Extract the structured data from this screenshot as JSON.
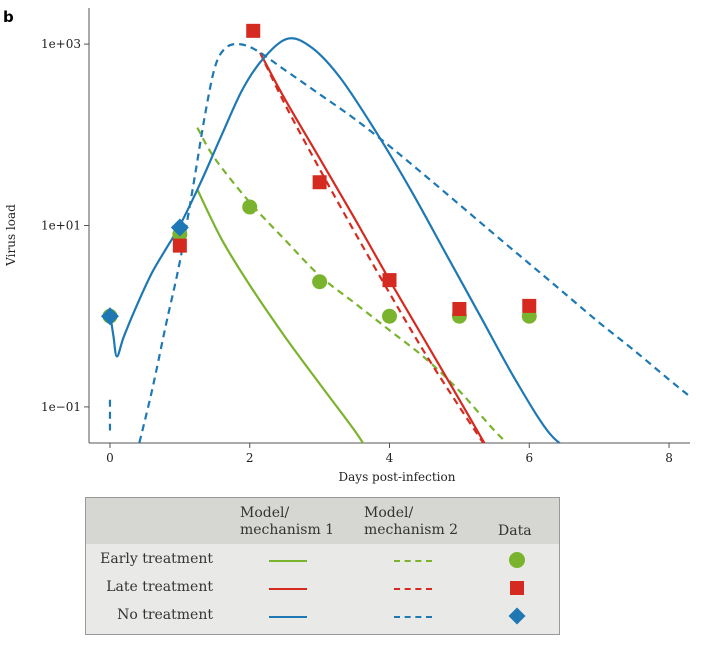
{
  "panel_label": "b",
  "chart_data": {
    "type": "line",
    "xlabel": "Days post-infection",
    "ylabel": "Virus load",
    "x_ticks": [
      0,
      2,
      4,
      6,
      8
    ],
    "y_ticks": [
      {
        "value": 0.1,
        "label": "1e−01"
      },
      {
        "value": 10,
        "label": "1e+01"
      },
      {
        "value": 1000,
        "label": "1e+03"
      }
    ],
    "y_scale": "log",
    "xlim": [
      -0.3,
      8.3
    ],
    "ylim": [
      0.04,
      2500
    ],
    "grid": false,
    "series": [
      {
        "key": "early_model1",
        "color": "#7ab32e",
        "dash": false,
        "points": [
          [
            1.25,
            25
          ],
          [
            1.6,
            7
          ],
          [
            2.0,
            2.2
          ],
          [
            2.5,
            0.6
          ],
          [
            3.0,
            0.18
          ],
          [
            3.5,
            0.055
          ],
          [
            3.7,
            0.032
          ]
        ]
      },
      {
        "key": "early_model2",
        "color": "#7ab32e",
        "dash": true,
        "points": [
          [
            1.25,
            120
          ],
          [
            1.5,
            55
          ],
          [
            2.0,
            18
          ],
          [
            2.5,
            7
          ],
          [
            3.0,
            2.8
          ],
          [
            3.5,
            1.4
          ],
          [
            4.0,
            0.7
          ],
          [
            4.5,
            0.35
          ],
          [
            5.0,
            0.15
          ],
          [
            5.5,
            0.055
          ],
          [
            5.85,
            0.03
          ]
        ]
      },
      {
        "key": "late_model1",
        "color": "#d42a20",
        "dash": false,
        "points": [
          [
            2.15,
            800
          ],
          [
            2.5,
            250
          ],
          [
            3.0,
            55
          ],
          [
            3.5,
            12
          ],
          [
            4.0,
            2.5
          ],
          [
            4.5,
            0.55
          ],
          [
            5.0,
            0.12
          ],
          [
            5.45,
            0.03
          ]
        ]
      },
      {
        "key": "late_model2",
        "color": "#d42a20",
        "dash": true,
        "points": [
          [
            2.15,
            800
          ],
          [
            2.5,
            220
          ],
          [
            3.0,
            42
          ],
          [
            3.5,
            8.5
          ],
          [
            4.0,
            1.8
          ],
          [
            4.5,
            0.4
          ],
          [
            5.0,
            0.1
          ],
          [
            5.45,
            0.03
          ]
        ]
      },
      {
        "key": "none_model1",
        "color": "#1e78b4",
        "dash": false,
        "points": [
          [
            0.0,
            1.1
          ],
          [
            0.05,
            0.6
          ],
          [
            0.1,
            0.36
          ],
          [
            0.2,
            0.6
          ],
          [
            0.4,
            1.4
          ],
          [
            0.6,
            3.0
          ],
          [
            0.8,
            5.5
          ],
          [
            1.0,
            10
          ],
          [
            1.3,
            30
          ],
          [
            1.6,
            100
          ],
          [
            1.9,
            320
          ],
          [
            2.2,
            700
          ],
          [
            2.55,
            1150
          ],
          [
            2.9,
            900
          ],
          [
            3.3,
            420
          ],
          [
            3.8,
            110
          ],
          [
            4.3,
            25
          ],
          [
            4.8,
            5
          ],
          [
            5.3,
            1.0
          ],
          [
            5.8,
            0.2
          ],
          [
            6.3,
            0.05
          ],
          [
            6.7,
            0.03
          ]
        ]
      },
      {
        "key": "none_model2",
        "color": "#1e78b4",
        "dash": true,
        "points": [
          [
            0.0,
            0.12
          ],
          [
            0.0,
            0.055
          ]
        ]
      },
      {
        "key": "none_model2b",
        "color": "#1e78b4",
        "dash": true,
        "points": [
          [
            0.38,
            0.03
          ],
          [
            0.6,
            0.15
          ],
          [
            0.8,
            0.8
          ],
          [
            1.0,
            4
          ],
          [
            1.2,
            30
          ],
          [
            1.35,
            150
          ],
          [
            1.5,
            550
          ],
          [
            1.65,
            900
          ],
          [
            1.85,
            1000
          ],
          [
            2.1,
            850
          ],
          [
            2.5,
            520
          ],
          [
            3.0,
            280
          ],
          [
            3.5,
            150
          ],
          [
            4.0,
            75
          ],
          [
            4.5,
            36
          ],
          [
            5.0,
            17
          ],
          [
            5.5,
            8
          ],
          [
            6.0,
            3.8
          ],
          [
            6.5,
            1.8
          ],
          [
            7.0,
            0.85
          ],
          [
            7.5,
            0.42
          ],
          [
            8.0,
            0.2
          ],
          [
            8.3,
            0.13
          ]
        ]
      }
    ],
    "markers": [
      {
        "shape": "circle",
        "color": "#7ab32e",
        "points": [
          [
            0,
            1.0
          ],
          [
            1,
            8
          ],
          [
            2,
            16
          ],
          [
            3,
            2.4
          ],
          [
            4,
            1.0
          ],
          [
            5,
            1.0
          ],
          [
            6,
            1.0
          ]
        ]
      },
      {
        "shape": "square",
        "color": "#d42a20",
        "points": [
          [
            1,
            6
          ],
          [
            2.05,
            1400
          ],
          [
            3,
            30
          ],
          [
            4,
            2.5
          ],
          [
            5,
            1.2
          ],
          [
            6,
            1.3
          ]
        ]
      },
      {
        "shape": "diamond",
        "color": "#1e78b4",
        "points": [
          [
            0,
            1.0
          ],
          [
            1,
            9.5
          ]
        ]
      }
    ]
  },
  "legend": {
    "col1_line1": "Model/",
    "col1_line2": "mechanism 1",
    "col2_line1": "Model/",
    "col2_line2": "mechanism 2",
    "col3": "Data",
    "rows": [
      {
        "label": "Early treatment",
        "color": "#7ab32e",
        "marker": "circle"
      },
      {
        "label": "Late treatment",
        "color": "#d42a20",
        "marker": "square"
      },
      {
        "label": "No treatment",
        "color": "#1e78b4",
        "marker": "diamond"
      }
    ]
  }
}
